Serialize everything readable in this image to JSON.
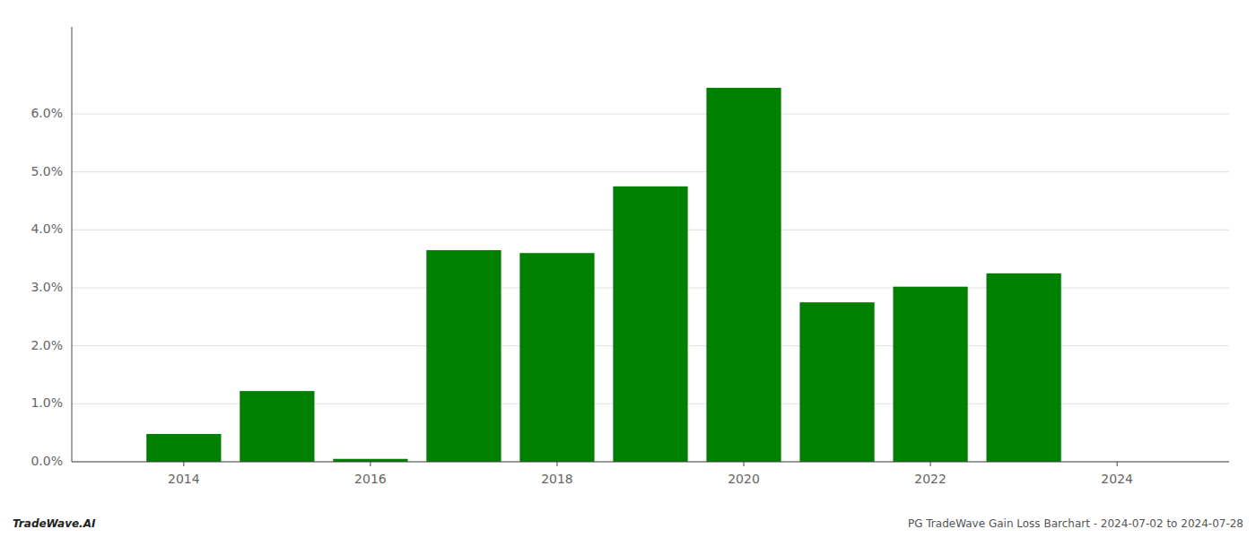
{
  "chart_data": {
    "type": "bar",
    "x": [
      2014,
      2015,
      2016,
      2017,
      2018,
      2019,
      2020,
      2021,
      2022,
      2023
    ],
    "values": [
      0.0048,
      0.0122,
      0.0005,
      0.0365,
      0.036,
      0.0475,
      0.0645,
      0.0275,
      0.0302,
      0.0325
    ],
    "color": "#008000",
    "xlim": [
      2012.8,
      2025.2
    ],
    "xticks": [
      2014,
      2016,
      2018,
      2020,
      2022,
      2024
    ],
    "ylim": [
      0.0,
      0.075
    ],
    "yticks": [
      {
        "value": 0.0,
        "label": "0.0%"
      },
      {
        "value": 0.01,
        "label": "1.0%"
      },
      {
        "value": 0.02,
        "label": "2.0%"
      },
      {
        "value": 0.03,
        "label": "3.0%"
      },
      {
        "value": 0.04,
        "label": "4.0%"
      },
      {
        "value": 0.05,
        "label": "5.0%"
      },
      {
        "value": 0.06,
        "label": "6.0%"
      }
    ],
    "grid": true,
    "annotations": [
      "TradeWave.AI",
      "PG TradeWave Gain Loss Barchart - 2024-07-02 to 2024-07-28"
    ]
  }
}
